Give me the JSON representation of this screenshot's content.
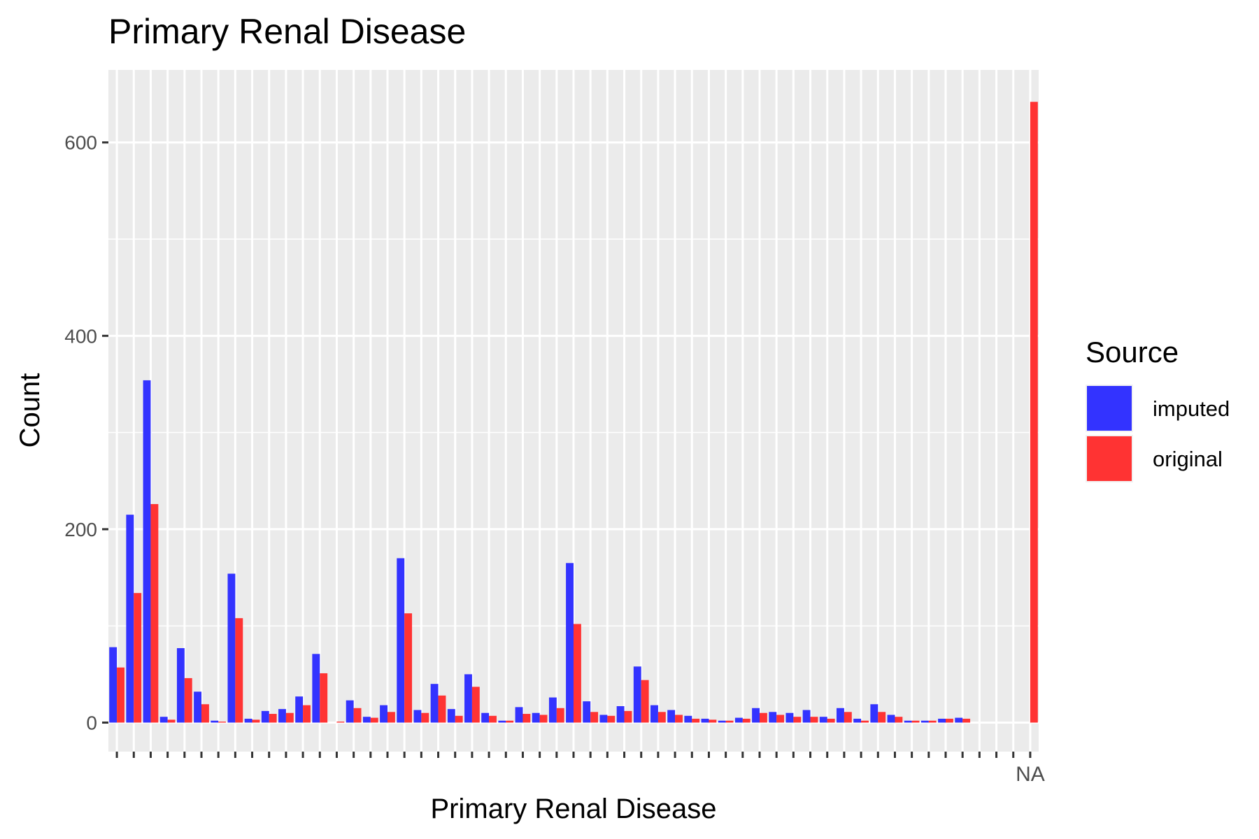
{
  "chart_data": {
    "type": "bar",
    "title": "Primary Renal Disease",
    "xlabel": "Primary Renal Disease",
    "ylabel": "Count",
    "ylim": [
      -30,
      675
    ],
    "yticks": [
      0,
      200,
      400,
      600
    ],
    "grid": true,
    "legend": {
      "title": "Source",
      "position": "right"
    },
    "categories": [
      "",
      "",
      "",
      "",
      "",
      "",
      "",
      "",
      "",
      "",
      "",
      "",
      "",
      "",
      "",
      "",
      "",
      "",
      "",
      "",
      "",
      "",
      "",
      "",
      "",
      "",
      "",
      "",
      "",
      "",
      "",
      "",
      "",
      "",
      "",
      "",
      "",
      "",
      "",
      "",
      "",
      "",
      "",
      "",
      "",
      "",
      "",
      "",
      "",
      "",
      "",
      "",
      "",
      "",
      "NA"
    ],
    "series": [
      {
        "name": "imputed",
        "color": "#3333FF",
        "values": [
          78,
          215,
          354,
          6,
          77,
          32,
          2,
          154,
          4,
          12,
          14,
          27,
          71,
          0,
          23,
          6,
          18,
          170,
          13,
          40,
          14,
          50,
          10,
          2,
          16,
          10,
          26,
          165,
          22,
          8,
          17,
          58,
          18,
          13,
          7,
          4,
          2,
          5,
          15,
          11,
          10,
          13,
          6,
          15,
          4,
          19,
          8,
          2,
          2,
          4,
          5,
          0,
          0,
          0,
          0
        ]
      },
      {
        "name": "original",
        "color": "#FF3333",
        "values": [
          57,
          134,
          226,
          3,
          46,
          19,
          1,
          108,
          3,
          9,
          10,
          18,
          51,
          1,
          15,
          5,
          11,
          113,
          10,
          28,
          7,
          37,
          7,
          2,
          9,
          8,
          15,
          102,
          11,
          7,
          12,
          44,
          11,
          8,
          4,
          3,
          2,
          4,
          10,
          8,
          6,
          6,
          4,
          11,
          2,
          11,
          6,
          2,
          2,
          4,
          4,
          0,
          0,
          0,
          642
        ]
      }
    ]
  }
}
